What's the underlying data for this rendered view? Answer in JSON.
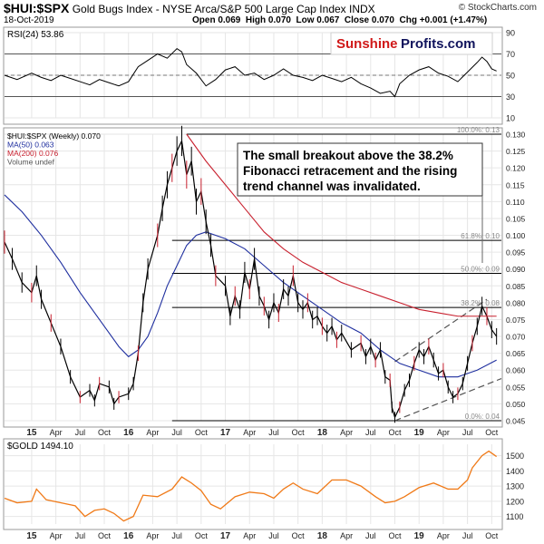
{
  "header": {
    "symbol": "$HUI:$SPX",
    "description": "Gold Bugs Index - NYSE Arca/S&P 500 Large Cap Index  INDX",
    "date": "18-Oct-2019",
    "open": "Open 0.069",
    "high": "High 0.070",
    "low": "Low 0.067",
    "close": "Close 0.070",
    "chg": "Chg +0.001 (+1.47%)",
    "credit": "© StockCharts.com",
    "watermark_red": "Sunshine",
    "watermark_blue": "Profits.com"
  },
  "annotation": {
    "lines": [
      "The small breakout above the 38.2%",
      "Fibonacci retracement and the rising",
      "trend channel was invalidated."
    ]
  },
  "chart_data": [
    {
      "type": "line",
      "panel": "rsi",
      "legend": "RSI(24) 53.86",
      "ylim": [
        10,
        90
      ],
      "ticks": [
        10,
        30,
        50,
        70,
        90
      ],
      "reference_lines": [
        30,
        50,
        70
      ],
      "series": [
        {
          "name": "RSI(24)",
          "color": "#000000",
          "x": [
            2014.72,
            2014.85,
            2015.0,
            2015.1,
            2015.2,
            2015.3,
            2015.4,
            2015.5,
            2015.6,
            2015.7,
            2015.8,
            2015.9,
            2016.0,
            2016.1,
            2016.2,
            2016.3,
            2016.4,
            2016.5,
            2016.55,
            2016.6,
            2016.7,
            2016.8,
            2016.9,
            2017.0,
            2017.1,
            2017.2,
            2017.3,
            2017.4,
            2017.5,
            2017.6,
            2017.7,
            2017.8,
            2017.9,
            2018.0,
            2018.1,
            2018.2,
            2018.3,
            2018.4,
            2018.5,
            2018.6,
            2018.7,
            2018.75,
            2018.8,
            2018.9,
            2019.0,
            2019.1,
            2019.2,
            2019.3,
            2019.4,
            2019.5,
            2019.6,
            2019.65,
            2019.7,
            2019.75,
            2019.8
          ],
          "y": [
            50,
            46,
            52,
            48,
            45,
            50,
            47,
            44,
            41,
            46,
            43,
            40,
            44,
            58,
            64,
            70,
            66,
            75,
            72,
            60,
            52,
            40,
            46,
            55,
            58,
            50,
            52,
            46,
            50,
            56,
            50,
            48,
            45,
            50,
            47,
            44,
            48,
            42,
            38,
            33,
            35,
            30,
            42,
            50,
            55,
            58,
            52,
            49,
            44,
            53,
            62,
            67,
            63,
            56,
            54
          ]
        }
      ]
    },
    {
      "type": "line",
      "panel": "main",
      "legend": [
        "$HUI:$SPX (Weekly) 0.070",
        "MA(50) 0.063",
        "MA(200) 0.076",
        "Volume undef"
      ],
      "ylim": [
        0.045,
        0.13
      ],
      "ticks": [
        0.045,
        0.05,
        0.055,
        0.06,
        0.065,
        0.07,
        0.075,
        0.08,
        0.085,
        0.09,
        0.095,
        0.1,
        0.105,
        0.11,
        0.115,
        0.12,
        0.125,
        0.13
      ],
      "tick_labels": [
        "0.045",
        "0.050",
        "0.055",
        "0.060",
        "0.065",
        "0.070",
        "0.075",
        "0.080",
        "0.085",
        "0.090",
        "0.095",
        "0.100",
        "0.105",
        "0.110",
        "0.115",
        "0.120",
        "0.125",
        "0.130"
      ],
      "x_labels": [
        "15",
        "Apr",
        "Jul",
        "Oct",
        "16",
        "Apr",
        "Jul",
        "Oct",
        "17",
        "Apr",
        "Jul",
        "Oct",
        "18",
        "Apr",
        "Jul",
        "Oct",
        "19",
        "Apr",
        "Jul",
        "Oct"
      ],
      "series": [
        {
          "name": "$HUI:$SPX (Weekly)",
          "color": "#000000",
          "x": [
            2014.72,
            2014.8,
            2014.9,
            2015.0,
            2015.05,
            2015.1,
            2015.2,
            2015.3,
            2015.4,
            2015.5,
            2015.6,
            2015.65,
            2015.7,
            2015.8,
            2015.85,
            2015.9,
            2016.0,
            2016.05,
            2016.1,
            2016.15,
            2016.2,
            2016.3,
            2016.35,
            2016.4,
            2016.45,
            2016.5,
            2016.55,
            2016.6,
            2016.65,
            2016.7,
            2016.75,
            2016.8,
            2016.85,
            2016.9,
            2017.0,
            2017.05,
            2017.1,
            2017.15,
            2017.2,
            2017.25,
            2017.3,
            2017.35,
            2017.4,
            2017.45,
            2017.5,
            2017.55,
            2017.6,
            2017.65,
            2017.7,
            2017.75,
            2017.8,
            2017.85,
            2017.9,
            2017.95,
            2018.0,
            2018.05,
            2018.1,
            2018.15,
            2018.2,
            2018.3,
            2018.4,
            2018.45,
            2018.5,
            2018.55,
            2018.6,
            2018.65,
            2018.7,
            2018.72,
            2018.75,
            2018.8,
            2018.85,
            2018.9,
            2018.95,
            2019.0,
            2019.05,
            2019.1,
            2019.15,
            2019.2,
            2019.25,
            2019.3,
            2019.35,
            2019.4,
            2019.45,
            2019.5,
            2019.55,
            2019.6,
            2019.65,
            2019.7,
            2019.75,
            2019.8
          ],
          "y": [
            0.098,
            0.093,
            0.086,
            0.083,
            0.088,
            0.081,
            0.074,
            0.067,
            0.058,
            0.052,
            0.054,
            0.051,
            0.056,
            0.055,
            0.05,
            0.052,
            0.053,
            0.056,
            0.065,
            0.08,
            0.09,
            0.1,
            0.108,
            0.115,
            0.12,
            0.125,
            0.128,
            0.118,
            0.122,
            0.11,
            0.113,
            0.104,
            0.097,
            0.088,
            0.085,
            0.076,
            0.082,
            0.078,
            0.089,
            0.084,
            0.093,
            0.082,
            0.079,
            0.075,
            0.08,
            0.077,
            0.084,
            0.082,
            0.088,
            0.08,
            0.078,
            0.08,
            0.075,
            0.076,
            0.073,
            0.071,
            0.073,
            0.069,
            0.071,
            0.066,
            0.068,
            0.064,
            0.067,
            0.063,
            0.066,
            0.058,
            0.057,
            0.049,
            0.046,
            0.049,
            0.054,
            0.057,
            0.062,
            0.066,
            0.064,
            0.067,
            0.063,
            0.059,
            0.06,
            0.055,
            0.052,
            0.053,
            0.056,
            0.062,
            0.068,
            0.073,
            0.079,
            0.076,
            0.072,
            0.07
          ]
        },
        {
          "name": "MA(50)",
          "color": "#1f2f9f",
          "x": [
            2014.72,
            2014.9,
            2015.1,
            2015.3,
            2015.5,
            2015.7,
            2015.9,
            2016.0,
            2016.1,
            2016.2,
            2016.3,
            2016.4,
            2016.5,
            2016.6,
            2016.7,
            2016.8,
            2017.0,
            2017.2,
            2017.4,
            2017.6,
            2017.8,
            2018.0,
            2018.2,
            2018.4,
            2018.6,
            2018.8,
            2019.0,
            2019.2,
            2019.4,
            2019.6,
            2019.8
          ],
          "y": [
            0.112,
            0.107,
            0.1,
            0.092,
            0.083,
            0.075,
            0.067,
            0.064,
            0.066,
            0.07,
            0.077,
            0.085,
            0.091,
            0.097,
            0.1,
            0.101,
            0.099,
            0.096,
            0.091,
            0.086,
            0.082,
            0.078,
            0.074,
            0.071,
            0.066,
            0.062,
            0.06,
            0.058,
            0.058,
            0.06,
            0.063
          ]
        },
        {
          "name": "MA(200)",
          "color": "#c8202e",
          "x": [
            2016.6,
            2016.8,
            2017.0,
            2017.2,
            2017.4,
            2017.6,
            2017.8,
            2018.0,
            2018.2,
            2018.4,
            2018.6,
            2018.8,
            2019.0,
            2019.2,
            2019.4,
            2019.6,
            2019.8
          ],
          "y": [
            0.13,
            0.122,
            0.115,
            0.108,
            0.101,
            0.096,
            0.092,
            0.089,
            0.086,
            0.084,
            0.082,
            0.08,
            0.078,
            0.077,
            0.076,
            0.076,
            0.076
          ]
        }
      ],
      "fibonacci": [
        {
          "label": "100.0%: 0.13",
          "value": 0.13
        },
        {
          "label": "61.8%: 0.10",
          "value": 0.0985
        },
        {
          "label": "50.0%: 0.09",
          "value": 0.0887
        },
        {
          "label": "38.2%: 0.08",
          "value": 0.0786
        },
        {
          "label": "0.0%: 0.04",
          "value": 0.045
        }
      ],
      "trend_lines": [
        {
          "x1": 2018.75,
          "y1": 0.0625,
          "x2": 2019.7,
          "y2": 0.081
        },
        {
          "x1": 2018.75,
          "y1": 0.045,
          "x2": 2019.85,
          "y2": 0.0575
        }
      ]
    },
    {
      "type": "line",
      "panel": "gold",
      "legend": "$GOLD 1494.10",
      "ylim": [
        1050,
        1575
      ],
      "ticks": [
        1100,
        1200,
        1300,
        1400,
        1500
      ],
      "x_labels": [
        "15",
        "Apr",
        "Jul",
        "Oct",
        "16",
        "Apr",
        "Jul",
        "Oct",
        "17",
        "Apr",
        "Jul",
        "Oct",
        "18",
        "Apr",
        "Jul",
        "Oct",
        "19",
        "Apr",
        "Jul",
        "Oct"
      ],
      "series": [
        {
          "name": "$GOLD",
          "color": "#f07a18",
          "x": [
            2014.72,
            2014.85,
            2015.0,
            2015.05,
            2015.15,
            2015.3,
            2015.45,
            2015.55,
            2015.65,
            2015.75,
            2015.85,
            2015.95,
            2016.05,
            2016.15,
            2016.3,
            2016.45,
            2016.55,
            2016.65,
            2016.75,
            2016.85,
            2016.95,
            2017.1,
            2017.25,
            2017.4,
            2017.5,
            2017.6,
            2017.7,
            2017.8,
            2017.95,
            2018.1,
            2018.25,
            2018.4,
            2018.55,
            2018.65,
            2018.75,
            2018.85,
            2019.0,
            2019.15,
            2019.3,
            2019.4,
            2019.5,
            2019.55,
            2019.65,
            2019.72,
            2019.8
          ],
          "y": [
            1220,
            1190,
            1200,
            1280,
            1210,
            1190,
            1170,
            1100,
            1140,
            1150,
            1120,
            1070,
            1100,
            1240,
            1230,
            1280,
            1360,
            1320,
            1270,
            1180,
            1150,
            1230,
            1260,
            1250,
            1220,
            1280,
            1320,
            1280,
            1250,
            1340,
            1340,
            1300,
            1230,
            1190,
            1200,
            1230,
            1290,
            1320,
            1280,
            1280,
            1340,
            1420,
            1500,
            1530,
            1494
          ]
        }
      ]
    }
  ]
}
